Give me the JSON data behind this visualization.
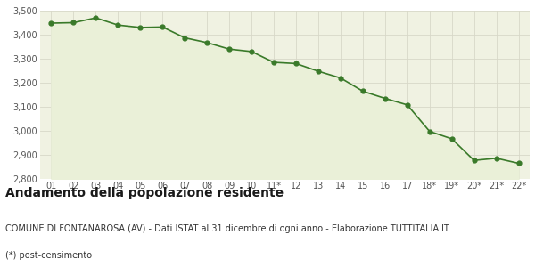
{
  "x_labels": [
    "01",
    "02",
    "03",
    "04",
    "05",
    "06",
    "07",
    "08",
    "09",
    "10",
    "11*",
    "12",
    "13",
    "14",
    "15",
    "16",
    "17",
    "18*",
    "19*",
    "20*",
    "21*",
    "22*"
  ],
  "values": [
    3448,
    3450,
    3470,
    3440,
    3430,
    3432,
    3387,
    3367,
    3340,
    3330,
    3285,
    3280,
    3248,
    3220,
    3165,
    3135,
    3108,
    2998,
    2967,
    2877,
    2886,
    2865
  ],
  "line_color": "#3a7a2a",
  "fill_color": "#eaf0d8",
  "marker_color": "#3a7a2a",
  "bg_color": "#ffffff",
  "plot_bg_color": "#f0f2e2",
  "grid_color": "#d8d8c8",
  "ylim": [
    2800,
    3500
  ],
  "yticks": [
    2800,
    2900,
    3000,
    3100,
    3200,
    3300,
    3400,
    3500
  ],
  "title": "Andamento della popolazione residente",
  "subtitle": "COMUNE DI FONTANAROSA (AV) - Dati ISTAT al 31 dicembre di ogni anno - Elaborazione TUTTITALIA.IT",
  "footnote": "(*) post-censimento",
  "title_fontsize": 10,
  "subtitle_fontsize": 7,
  "footnote_fontsize": 7,
  "tick_fontsize": 7
}
